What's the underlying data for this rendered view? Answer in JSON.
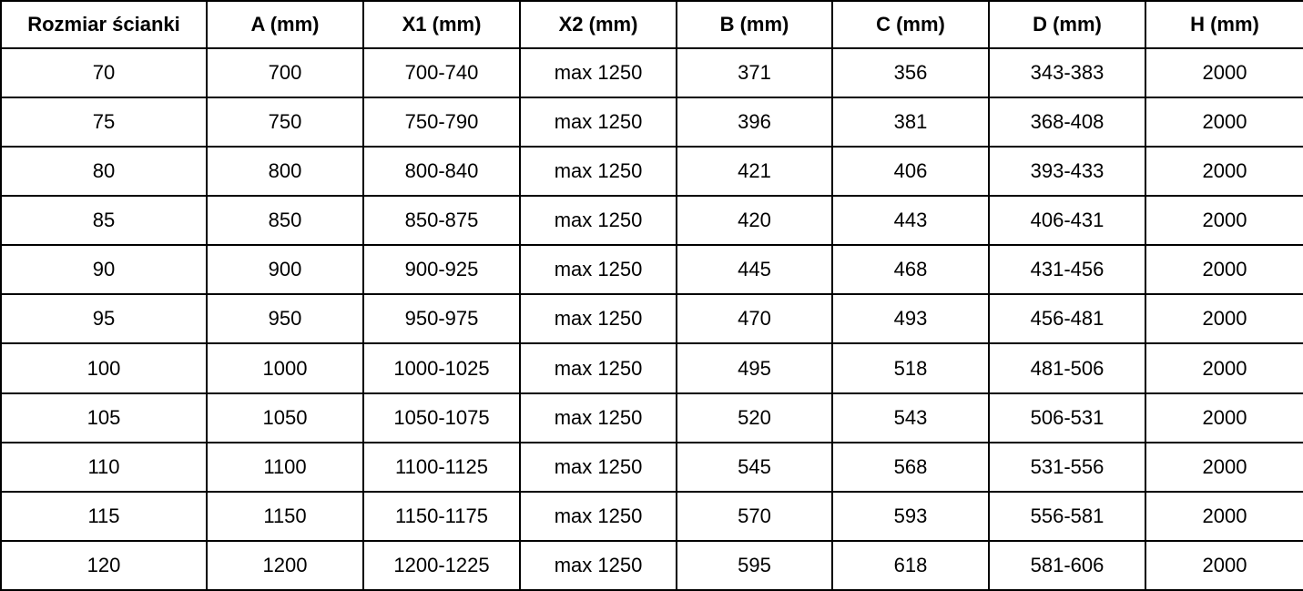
{
  "table": {
    "name": "rozmiar-scianki-spec-table",
    "columns": [
      "Rozmiar ścianki",
      "A (mm)",
      "X1 (mm)",
      "X2 (mm)",
      "B (mm)",
      "C (mm)",
      "D (mm)",
      "H (mm)"
    ],
    "rows": [
      [
        "70",
        "700",
        "700-740",
        "max 1250",
        "371",
        "356",
        "343-383",
        "2000"
      ],
      [
        "75",
        "750",
        "750-790",
        "max 1250",
        "396",
        "381",
        "368-408",
        "2000"
      ],
      [
        "80",
        "800",
        "800-840",
        "max 1250",
        "421",
        "406",
        "393-433",
        "2000"
      ],
      [
        "85",
        "850",
        "850-875",
        "max 1250",
        "420",
        "443",
        "406-431",
        "2000"
      ],
      [
        "90",
        "900",
        "900-925",
        "max 1250",
        "445",
        "468",
        "431-456",
        "2000"
      ],
      [
        "95",
        "950",
        "950-975",
        "max 1250",
        "470",
        "493",
        "456-481",
        "2000"
      ],
      [
        "100",
        "1000",
        "1000-1025",
        "max 1250",
        "495",
        "518",
        "481-506",
        "2000"
      ],
      [
        "105",
        "1050",
        "1050-1075",
        "max 1250",
        "520",
        "543",
        "506-531",
        "2000"
      ],
      [
        "110",
        "1100",
        "1100-1125",
        "max 1250",
        "545",
        "568",
        "531-556",
        "2000"
      ],
      [
        "115",
        "1150",
        "1150-1175",
        "max 1250",
        "570",
        "593",
        "556-581",
        "2000"
      ],
      [
        "120",
        "1200",
        "1200-1225",
        "max 1250",
        "595",
        "618",
        "581-606",
        "2000"
      ]
    ],
    "colors": {
      "border": "#000000",
      "background": "#ffffff",
      "text": "#000000"
    }
  }
}
